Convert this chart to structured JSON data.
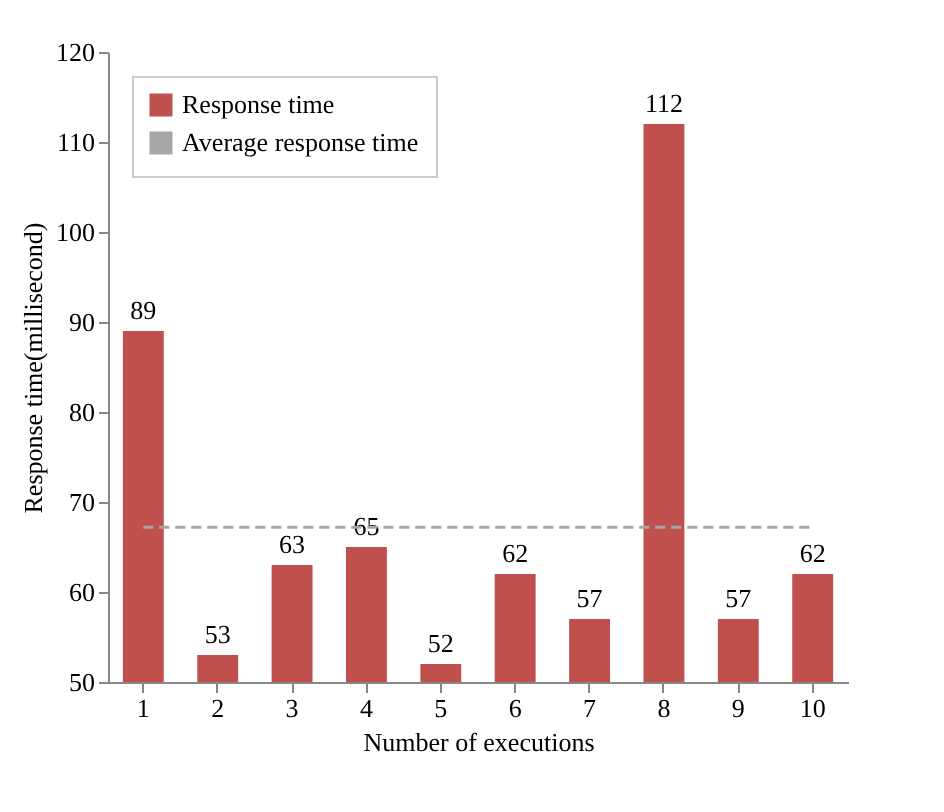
{
  "chart_data": {
    "type": "bar",
    "xlabel": "Number of executions",
    "ylabel": "Response time(millisecond)",
    "categories": [
      "1",
      "2",
      "3",
      "4",
      "5",
      "6",
      "7",
      "8",
      "9",
      "10"
    ],
    "series": [
      {
        "name": "Response time",
        "color": "#c0504d",
        "values": [
          89,
          53,
          63,
          65,
          52,
          62,
          57,
          112,
          57,
          62
        ],
        "value_labels": [
          "89",
          "53",
          "63",
          "65",
          "52",
          "62",
          "57",
          "112",
          "57",
          "62"
        ]
      },
      {
        "name": "Average response time",
        "type": "line",
        "color": "#a6a6a6",
        "line_style": "dashed",
        "values": [
          67.2,
          67.2,
          67.2,
          67.2,
          67.2,
          67.2,
          67.2,
          67.2,
          67.2,
          67.2
        ]
      }
    ],
    "ylim": [
      50,
      120
    ],
    "yticks": [
      50,
      60,
      70,
      80,
      90,
      100,
      110,
      120
    ],
    "grid": false,
    "legend": "top left",
    "marker": "none"
  }
}
